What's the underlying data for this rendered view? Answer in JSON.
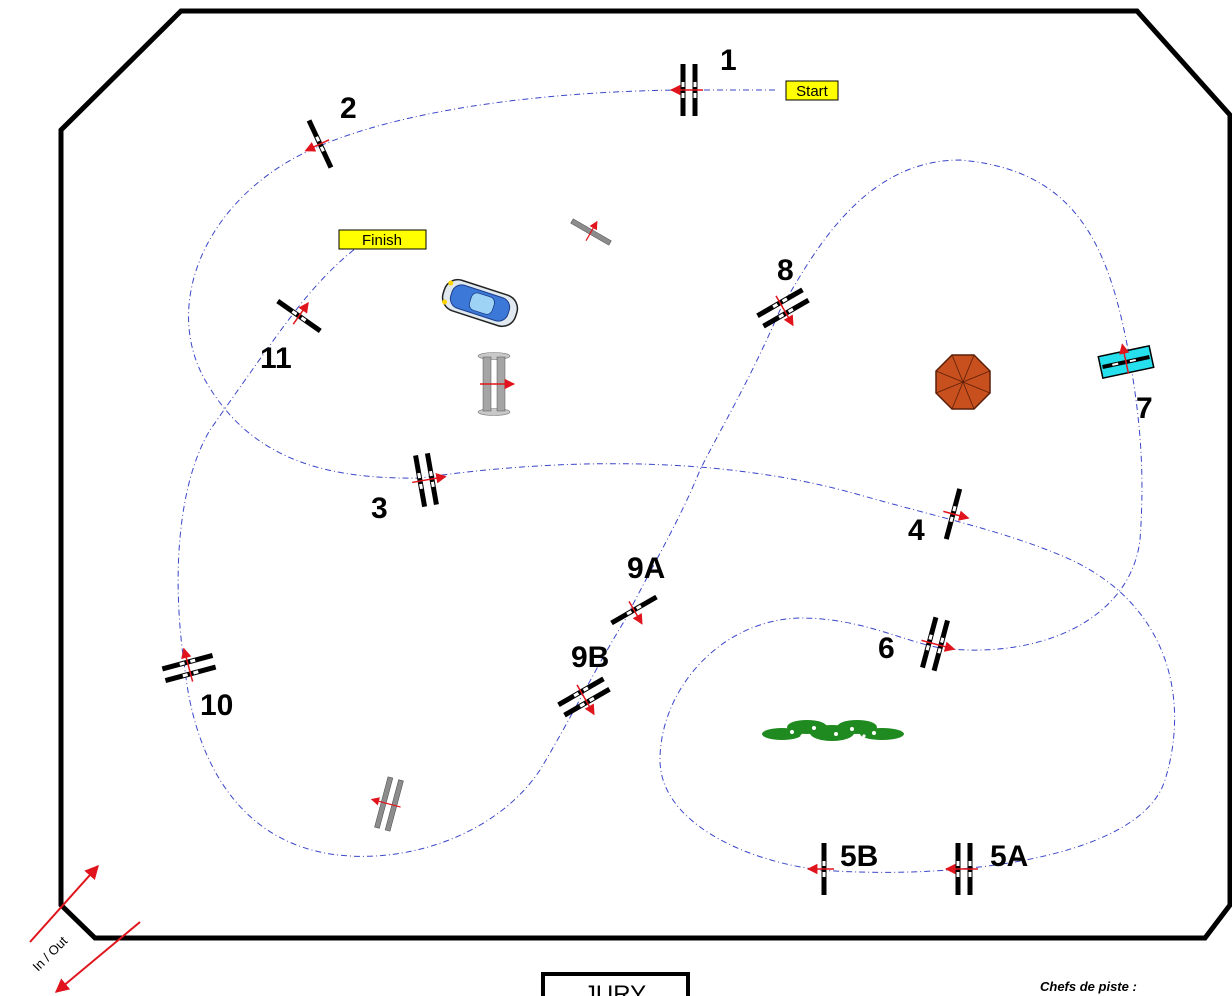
{
  "labels": {
    "start": "Start",
    "finish": "Finish",
    "in_out": "In / Out",
    "jury": "JURY",
    "chefs_de_piste": "Chefs de piste :"
  },
  "obstacles": {
    "n1": "1",
    "n2": "2",
    "n3": "3",
    "n4": "4",
    "n5a": "5A",
    "n5b": "5B",
    "n6": "6",
    "n7": "7",
    "n8": "8",
    "n9a": "9A",
    "n9b": "9B",
    "n10": "10",
    "n11": "11"
  },
  "colors": {
    "course_line": "#3b46c8",
    "direction_arrow": "#e0141c",
    "label_box": "#ffff00",
    "arena_border": "#000000",
    "water_jump": "#27e0ee",
    "umbrella": "#c8501e",
    "hedge": "#1f8a1f",
    "car": "#3c78d8"
  }
}
